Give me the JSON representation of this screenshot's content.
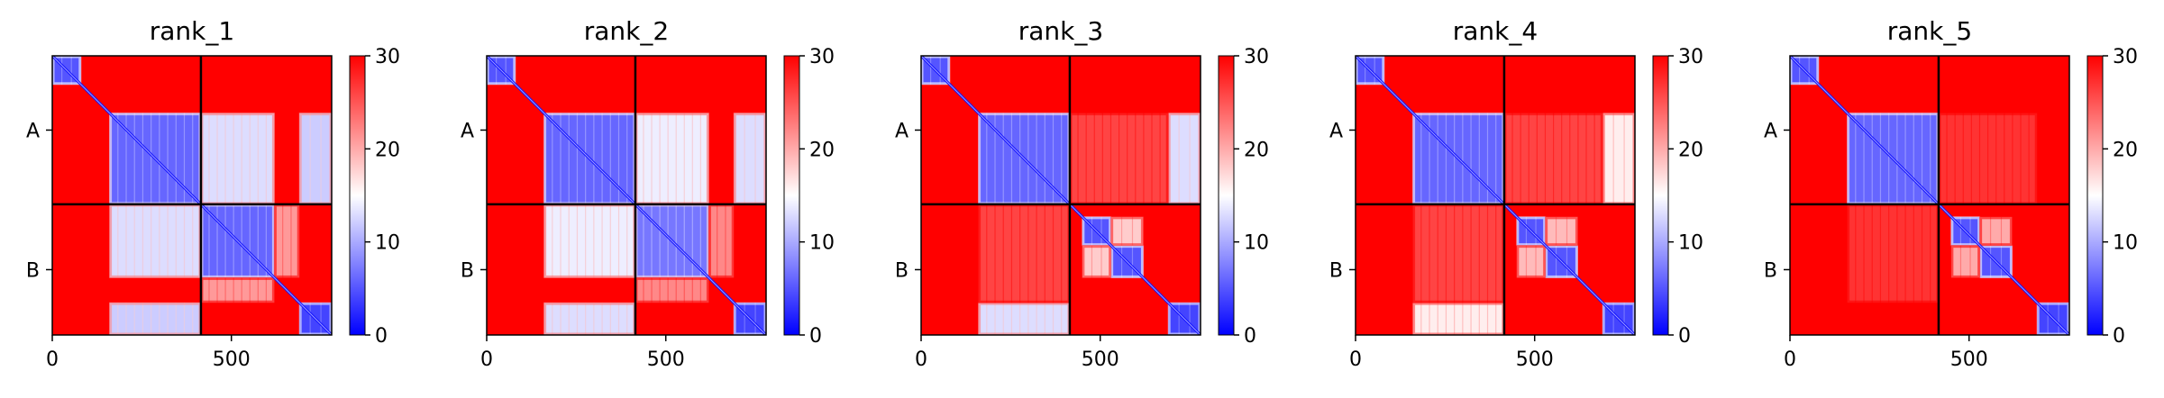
{
  "chart_data": [
    {
      "type": "heatmap",
      "title": "rank_1",
      "xlim": [
        0,
        780
      ],
      "x_ticks": [
        0,
        500
      ],
      "y_tick_labels": [
        "A",
        "B"
      ],
      "chain_boundary": 415,
      "colorbar": {
        "min": 0,
        "max": 30,
        "ticks": [
          0,
          10,
          20,
          30
        ],
        "colors": [
          "#0000ff",
          "#ffffff",
          "#ff0000"
        ]
      },
      "low_error_blocks": [
        {
          "x": [
            0,
            80
          ],
          "y": [
            0,
            80
          ],
          "value": 5
        },
        {
          "x": [
            160,
            415
          ],
          "y": [
            160,
            415
          ],
          "value": 6
        },
        {
          "x": [
            415,
            620
          ],
          "y": [
            415,
            620
          ],
          "value": 6
        },
        {
          "x": [
            690,
            780
          ],
          "y": [
            690,
            780
          ],
          "value": 4
        },
        {
          "x": [
            415,
            620
          ],
          "y": [
            160,
            415
          ],
          "value": 13
        },
        {
          "x": [
            160,
            415
          ],
          "y": [
            415,
            620
          ],
          "value": 13
        },
        {
          "x": [
            690,
            780
          ],
          "y": [
            160,
            415
          ],
          "value": 12
        },
        {
          "x": [
            160,
            415
          ],
          "y": [
            690,
            780
          ],
          "value": 12
        },
        {
          "x": [
            620,
            690
          ],
          "y": [
            415,
            620
          ],
          "value": 21
        },
        {
          "x": [
            415,
            620
          ],
          "y": [
            620,
            690
          ],
          "value": 21
        }
      ]
    },
    {
      "type": "heatmap",
      "title": "rank_2",
      "xlim": [
        0,
        780
      ],
      "x_ticks": [
        0,
        500
      ],
      "y_tick_labels": [
        "A",
        "B"
      ],
      "chain_boundary": 415,
      "colorbar": {
        "min": 0,
        "max": 30,
        "ticks": [
          0,
          10,
          20,
          30
        ],
        "colors": [
          "#0000ff",
          "#ffffff",
          "#ff0000"
        ]
      },
      "low_error_blocks": [
        {
          "x": [
            0,
            80
          ],
          "y": [
            0,
            80
          ],
          "value": 5
        },
        {
          "x": [
            160,
            415
          ],
          "y": [
            160,
            415
          ],
          "value": 6
        },
        {
          "x": [
            415,
            620
          ],
          "y": [
            415,
            620
          ],
          "value": 7
        },
        {
          "x": [
            690,
            780
          ],
          "y": [
            690,
            780
          ],
          "value": 4
        },
        {
          "x": [
            415,
            620
          ],
          "y": [
            160,
            415
          ],
          "value": 14
        },
        {
          "x": [
            160,
            415
          ],
          "y": [
            415,
            620
          ],
          "value": 14
        },
        {
          "x": [
            690,
            780
          ],
          "y": [
            160,
            415
          ],
          "value": 13
        },
        {
          "x": [
            160,
            415
          ],
          "y": [
            690,
            780
          ],
          "value": 13
        },
        {
          "x": [
            620,
            690
          ],
          "y": [
            415,
            620
          ],
          "value": 22
        },
        {
          "x": [
            415,
            620
          ],
          "y": [
            620,
            690
          ],
          "value": 22
        }
      ]
    },
    {
      "type": "heatmap",
      "title": "rank_3",
      "xlim": [
        0,
        780
      ],
      "x_ticks": [
        0,
        500
      ],
      "y_tick_labels": [
        "A",
        "B"
      ],
      "chain_boundary": 415,
      "colorbar": {
        "min": 0,
        "max": 30,
        "ticks": [
          0,
          10,
          20,
          30
        ],
        "colors": [
          "#0000ff",
          "#ffffff",
          "#ff0000"
        ]
      },
      "low_error_blocks": [
        {
          "x": [
            0,
            80
          ],
          "y": [
            0,
            80
          ],
          "value": 5
        },
        {
          "x": [
            160,
            415
          ],
          "y": [
            160,
            415
          ],
          "value": 6
        },
        {
          "x": [
            450,
            530
          ],
          "y": [
            450,
            530
          ],
          "value": 5
        },
        {
          "x": [
            530,
            620
          ],
          "y": [
            530,
            620
          ],
          "value": 5
        },
        {
          "x": [
            690,
            780
          ],
          "y": [
            690,
            780
          ],
          "value": 4
        },
        {
          "x": [
            690,
            780
          ],
          "y": [
            160,
            415
          ],
          "value": 13
        },
        {
          "x": [
            160,
            415
          ],
          "y": [
            690,
            780
          ],
          "value": 13
        },
        {
          "x": [
            450,
            530
          ],
          "y": [
            530,
            620
          ],
          "value": 18
        },
        {
          "x": [
            530,
            620
          ],
          "y": [
            450,
            530
          ],
          "value": 18
        },
        {
          "x": [
            415,
            690
          ],
          "y": [
            160,
            415
          ],
          "value": 26
        },
        {
          "x": [
            160,
            415
          ],
          "y": [
            415,
            690
          ],
          "value": 26
        }
      ]
    },
    {
      "type": "heatmap",
      "title": "rank_4",
      "xlim": [
        0,
        780
      ],
      "x_ticks": [
        0,
        500
      ],
      "y_tick_labels": [
        "A",
        "B"
      ],
      "chain_boundary": 415,
      "colorbar": {
        "min": 0,
        "max": 30,
        "ticks": [
          0,
          10,
          20,
          30
        ],
        "colors": [
          "#0000ff",
          "#ffffff",
          "#ff0000"
        ]
      },
      "low_error_blocks": [
        {
          "x": [
            0,
            80
          ],
          "y": [
            0,
            80
          ],
          "value": 5
        },
        {
          "x": [
            160,
            415
          ],
          "y": [
            160,
            415
          ],
          "value": 6
        },
        {
          "x": [
            450,
            530
          ],
          "y": [
            450,
            530
          ],
          "value": 5
        },
        {
          "x": [
            530,
            620
          ],
          "y": [
            530,
            620
          ],
          "value": 5
        },
        {
          "x": [
            690,
            780
          ],
          "y": [
            690,
            780
          ],
          "value": 4
        },
        {
          "x": [
            690,
            780
          ],
          "y": [
            160,
            415
          ],
          "value": 16
        },
        {
          "x": [
            160,
            415
          ],
          "y": [
            690,
            780
          ],
          "value": 16
        },
        {
          "x": [
            450,
            530
          ],
          "y": [
            530,
            620
          ],
          "value": 19
        },
        {
          "x": [
            530,
            620
          ],
          "y": [
            450,
            530
          ],
          "value": 19
        },
        {
          "x": [
            415,
            690
          ],
          "y": [
            160,
            415
          ],
          "value": 26
        },
        {
          "x": [
            160,
            415
          ],
          "y": [
            415,
            690
          ],
          "value": 26
        }
      ]
    },
    {
      "type": "heatmap",
      "title": "rank_5",
      "xlim": [
        0,
        780
      ],
      "x_ticks": [
        0,
        500
      ],
      "y_tick_labels": [
        "A",
        "B"
      ],
      "chain_boundary": 415,
      "colorbar": {
        "min": 0,
        "max": 30,
        "ticks": [
          0,
          10,
          20,
          30
        ],
        "colors": [
          "#0000ff",
          "#ffffff",
          "#ff0000"
        ]
      },
      "low_error_blocks": [
        {
          "x": [
            0,
            80
          ],
          "y": [
            0,
            80
          ],
          "value": 5
        },
        {
          "x": [
            160,
            415
          ],
          "y": [
            160,
            415
          ],
          "value": 6
        },
        {
          "x": [
            450,
            530
          ],
          "y": [
            450,
            530
          ],
          "value": 5
        },
        {
          "x": [
            530,
            620
          ],
          "y": [
            530,
            620
          ],
          "value": 5
        },
        {
          "x": [
            690,
            780
          ],
          "y": [
            690,
            780
          ],
          "value": 4
        },
        {
          "x": [
            450,
            530
          ],
          "y": [
            530,
            620
          ],
          "value": 20
        },
        {
          "x": [
            530,
            620
          ],
          "y": [
            450,
            530
          ],
          "value": 20
        },
        {
          "x": [
            415,
            690
          ],
          "y": [
            160,
            415
          ],
          "value": 27
        },
        {
          "x": [
            160,
            415
          ],
          "y": [
            415,
            690
          ],
          "value": 27
        }
      ]
    }
  ]
}
